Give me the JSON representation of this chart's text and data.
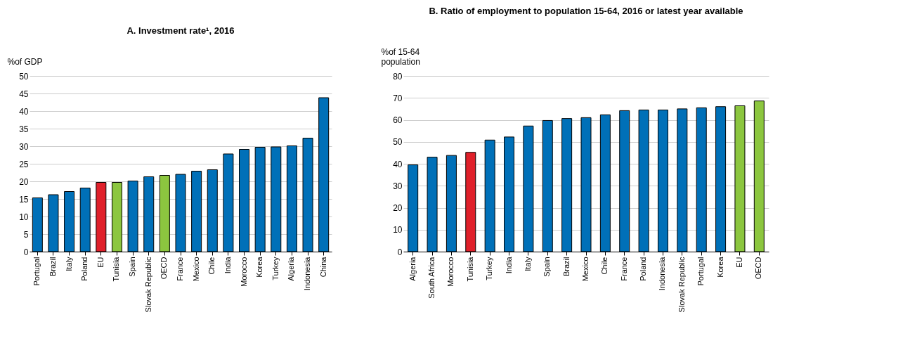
{
  "chart_data": [
    {
      "type": "bar",
      "title": "A. Investment rate¹, 2016",
      "ylabel": "%of GDP",
      "categories": [
        "Portugal",
        "Brazil",
        "Italy",
        "Poland",
        "EU",
        "Tunisia",
        "Spain",
        "Slovak Republic",
        "OECD",
        "France",
        "Mexico",
        "Chile",
        "India",
        "Morocco",
        "Korea",
        "Turkey",
        "Algeria",
        "Indonesia",
        "China"
      ],
      "values": [
        15.3,
        16.2,
        17.1,
        18.1,
        19.7,
        19.7,
        20.1,
        21.3,
        21.7,
        22.0,
        22.9,
        23.3,
        27.8,
        29.1,
        29.7,
        29.8,
        30.1,
        32.3,
        43.8
      ],
      "colors": [
        "#0070b8",
        "#0070b8",
        "#0070b8",
        "#0070b8",
        "#e0202a",
        "#8cc63f",
        "#0070b8",
        "#0070b8",
        "#8cc63f",
        "#0070b8",
        "#0070b8",
        "#0070b8",
        "#0070b8",
        "#0070b8",
        "#0070b8",
        "#0070b8",
        "#0070b8",
        "#0070b8",
        "#0070b8"
      ],
      "ylim": [
        0,
        50
      ],
      "yticks": [
        0,
        5,
        10,
        15,
        20,
        25,
        30,
        35,
        40,
        45,
        50
      ],
      "grid": "y"
    },
    {
      "type": "bar",
      "title": "B. Ratio of employment to population 15-64, 2016 or latest year available",
      "ylabel": "%of 15-64\npopulation",
      "categories": [
        "Algeria",
        "South Africa",
        "Morocco",
        "Tunisia",
        "Turkey",
        "India",
        "Italy",
        "Spain",
        "Brazil",
        "Mexico",
        "Chile",
        "France",
        "Poland",
        "Indonesia",
        "Slovak Republic",
        "Portugal",
        "Korea",
        "EU",
        "OECD"
      ],
      "values": [
        39.5,
        43.0,
        43.8,
        45.2,
        50.8,
        52.2,
        57.2,
        59.7,
        60.6,
        61.0,
        62.3,
        64.2,
        64.5,
        64.5,
        65.0,
        65.5,
        66.0,
        66.4,
        68.6
      ],
      "colors": [
        "#0070b8",
        "#0070b8",
        "#0070b8",
        "#e0202a",
        "#0070b8",
        "#0070b8",
        "#0070b8",
        "#0070b8",
        "#0070b8",
        "#0070b8",
        "#0070b8",
        "#0070b8",
        "#0070b8",
        "#0070b8",
        "#0070b8",
        "#0070b8",
        "#0070b8",
        "#8cc63f",
        "#8cc63f"
      ],
      "ylim": [
        0,
        80
      ],
      "yticks": [
        0,
        10,
        20,
        30,
        40,
        50,
        60,
        70,
        80
      ],
      "grid": "y"
    }
  ]
}
